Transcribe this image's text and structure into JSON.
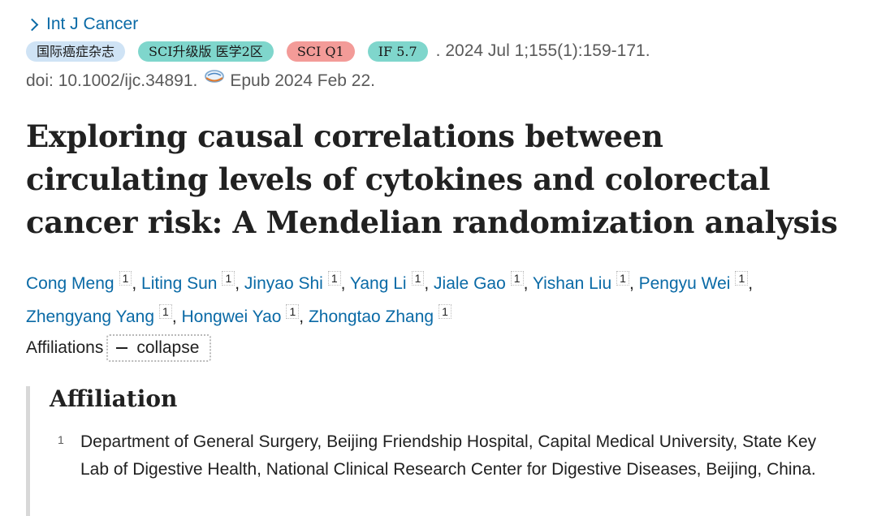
{
  "journal": {
    "name": "Int J Cancer"
  },
  "badges": [
    {
      "label": "国际癌症杂志",
      "color": "#cfe3f5"
    },
    {
      "label": "SCI升级版 医学2区",
      "color": "#7fd6cc"
    },
    {
      "label": "SCI Q1",
      "color": "#f39b98"
    },
    {
      "label": "IF 5.7",
      "color": "#7fd6cc"
    }
  ],
  "citation": {
    "date_volume_pages": ". 2024 Jul 1;155(1):159-171.",
    "doi": "doi: 10.1002/ijc.34891.",
    "epub": "Epub 2024 Feb 22."
  },
  "article": {
    "title": "Exploring causal correlations between circulating levels of cytokines and colorectal cancer risk: A Mendelian randomization analysis"
  },
  "authors": [
    {
      "name": "Cong Meng",
      "aff": "1"
    },
    {
      "name": "Liting Sun",
      "aff": "1"
    },
    {
      "name": "Jinyao Shi",
      "aff": "1"
    },
    {
      "name": "Yang Li",
      "aff": "1"
    },
    {
      "name": "Jiale Gao",
      "aff": "1"
    },
    {
      "name": "Yishan Liu",
      "aff": "1"
    },
    {
      "name": "Pengyu Wei",
      "aff": "1"
    },
    {
      "name": "Zhengyang Yang",
      "aff": "1"
    },
    {
      "name": "Hongwei Yao",
      "aff": "1"
    },
    {
      "name": "Zhongtao Zhang",
      "aff": "1"
    }
  ],
  "affiliations_toggle": {
    "label": "Affiliations",
    "button_label": "collapse"
  },
  "affiliation_panel": {
    "heading": "Affiliation",
    "items": [
      {
        "number": "1",
        "text": "Department of General Surgery, Beijing Friendship Hospital, Capital Medical University, State Key Lab of Digestive Health, National Clinical Research Center for Digestive Diseases, Beijing, China."
      }
    ]
  },
  "colors": {
    "link": "#0a6aa6",
    "text": "#212121",
    "muted": "#5a5a5a"
  }
}
